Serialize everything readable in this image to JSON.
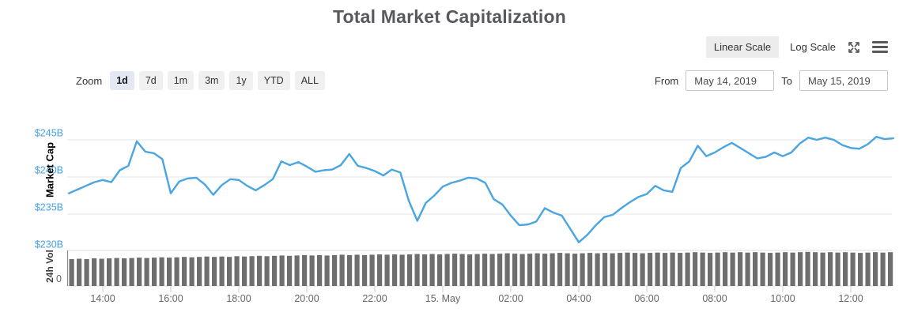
{
  "header": {
    "title": "Total Market Capitalization"
  },
  "scale_controls": {
    "linear_label": "Linear Scale",
    "log_label": "Log Scale",
    "icons": [
      "fullscreen-icon",
      "hamburger-menu-icon"
    ]
  },
  "toolbar": {
    "zoom_label": "Zoom",
    "ranges": [
      "1d",
      "7d",
      "1m",
      "3m",
      "1y",
      "YTD",
      "ALL"
    ],
    "selected_range": "1d",
    "from_label": "From",
    "from_value": "May 14, 2019",
    "to_label": "To",
    "to_value": "May 15, 2019"
  },
  "colors": {
    "line_blue": "#4AA5E0",
    "axis_blue": "#45A1DE",
    "grid": "#E6E6E6",
    "pane_border": "#DEDEDE",
    "tick": "#CCCCCC",
    "axis_text": "#666666",
    "volume_bar": "#6E6E6E",
    "volume_spine": "#8A8A8A"
  },
  "chart_data": {
    "type": "line",
    "title": "Total Market Capitalization",
    "legend": "off",
    "grid": "on",
    "yaxis": {
      "title": "Market Cap",
      "range_billions": [
        229.5,
        247.5
      ],
      "ticks": [
        {
          "value": 245,
          "label": "$245B"
        },
        {
          "value": 240,
          "label": "$240B"
        },
        {
          "value": 235,
          "label": "$235B"
        },
        {
          "value": 230,
          "label": "$230B"
        }
      ]
    },
    "xaxis": {
      "start": "May 14, 13:00",
      "end": "May 15, 13:15",
      "ticks": [
        {
          "hours_from_start": 1,
          "label": "14:00"
        },
        {
          "hours_from_start": 3,
          "label": "16:00"
        },
        {
          "hours_from_start": 5,
          "label": "18:00"
        },
        {
          "hours_from_start": 7,
          "label": "20:00"
        },
        {
          "hours_from_start": 9,
          "label": "22:00"
        },
        {
          "hours_from_start": 11,
          "label": "15. May"
        },
        {
          "hours_from_start": 13,
          "label": "02:00"
        },
        {
          "hours_from_start": 15,
          "label": "04:00"
        },
        {
          "hours_from_start": 17,
          "label": "06:00"
        },
        {
          "hours_from_start": 19,
          "label": "08:00"
        },
        {
          "hours_from_start": 21,
          "label": "10:00"
        },
        {
          "hours_from_start": 23,
          "label": "12:00"
        }
      ]
    },
    "series": [
      {
        "name": "Market Cap",
        "unit": "USD billions",
        "interval_minutes": 15,
        "values": [
          237.8,
          238.3,
          238.8,
          239.3,
          239.6,
          239.3,
          240.9,
          241.5,
          244.8,
          243.4,
          243.2,
          242.4,
          237.8,
          239.4,
          239.8,
          239.9,
          239.0,
          237.6,
          238.9,
          239.7,
          239.6,
          238.8,
          238.2,
          238.9,
          239.7,
          242.1,
          241.6,
          242.0,
          241.4,
          240.7,
          240.9,
          241.0,
          241.6,
          243.1,
          241.5,
          241.2,
          240.8,
          240.2,
          241.0,
          240.6,
          236.8,
          234.1,
          236.5,
          237.5,
          238.7,
          239.2,
          239.5,
          239.9,
          239.8,
          239.2,
          237.0,
          236.3,
          234.8,
          233.5,
          233.6,
          234.0,
          235.8,
          235.2,
          234.8,
          233.0,
          231.2,
          232.2,
          233.5,
          234.6,
          234.9,
          235.8,
          236.6,
          237.3,
          237.7,
          238.8,
          238.2,
          238.0,
          241.2,
          242.1,
          244.2,
          242.8,
          243.3,
          244.0,
          244.6,
          243.9,
          243.2,
          242.5,
          242.7,
          243.3,
          242.8,
          243.3,
          244.5,
          245.3,
          245.0,
          245.3,
          245.0,
          244.3,
          243.9,
          243.8,
          244.4,
          245.4,
          245.1,
          245.2
        ]
      }
    ],
    "volume_pane": {
      "title": "24h Vol",
      "zero_label": "0",
      "relative_heights": [
        0.74,
        0.75,
        0.74,
        0.76,
        0.75,
        0.76,
        0.77,
        0.76,
        0.77,
        0.78,
        0.77,
        0.78,
        0.79,
        0.78,
        0.79,
        0.8,
        0.79,
        0.8,
        0.81,
        0.8,
        0.81,
        0.8,
        0.82,
        0.81,
        0.82,
        0.83,
        0.82,
        0.83,
        0.84,
        0.83,
        0.84,
        0.85,
        0.84,
        0.85,
        0.84,
        0.85,
        0.86,
        0.85,
        0.86,
        0.85,
        0.86,
        0.87,
        0.86,
        0.87,
        0.86,
        0.87,
        0.88,
        0.87,
        0.88,
        0.87,
        0.88,
        0.89,
        0.88,
        0.87,
        0.88,
        0.89,
        0.88,
        0.89,
        0.9,
        0.89,
        0.88,
        0.89,
        0.9,
        0.89,
        0.9,
        0.91,
        0.9,
        0.89,
        0.9,
        0.91,
        0.9,
        0.91,
        0.9,
        0.91,
        0.92,
        0.91,
        0.9,
        0.91,
        0.92,
        0.91,
        0.92,
        0.91,
        0.92,
        0.93,
        0.92,
        0.91,
        0.92,
        0.93,
        0.92,
        0.93,
        0.92,
        0.93,
        0.92,
        0.91,
        0.92,
        0.93,
        0.92,
        0.93,
        0.94,
        0.93,
        0.92,
        0.93,
        0.92,
        0.93,
        0.92,
        0.91,
        0.92,
        0.93,
        0.92,
        0.93
      ]
    }
  }
}
